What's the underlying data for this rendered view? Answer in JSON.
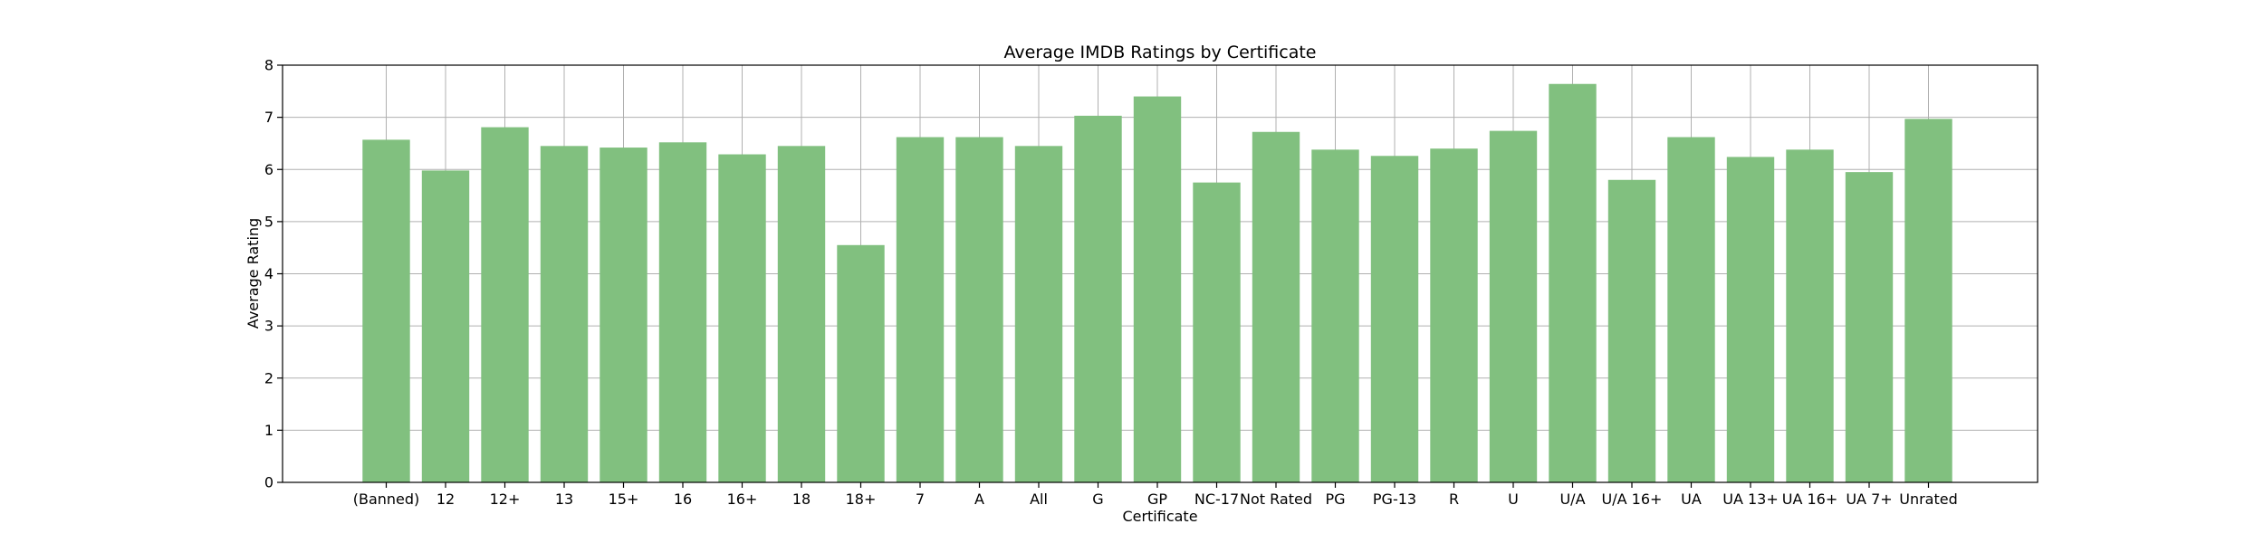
{
  "chart_data": {
    "type": "bar",
    "title": "Average IMDB Ratings by Certificate",
    "xlabel": "Certificate",
    "ylabel": "Average Rating",
    "ylim": [
      0,
      8
    ],
    "yticks": [
      "0",
      "1",
      "2",
      "3",
      "4",
      "5",
      "6",
      "7",
      "8"
    ],
    "grid": true,
    "bar_color": "#81c07f",
    "categories": [
      "(Banned)",
      "12",
      "12+",
      "13",
      "15+",
      "16",
      "16+",
      "18",
      "18+",
      "7",
      "A",
      "All",
      "G",
      "GP",
      "NC-17",
      "Not Rated",
      "PG",
      "PG-13",
      "R",
      "U",
      "U/A",
      "U/A 16+",
      "UA",
      "UA 13+",
      "UA 16+",
      "UA 7+",
      "Unrated"
    ],
    "values": [
      6.57,
      5.98,
      6.81,
      6.45,
      6.42,
      6.52,
      6.29,
      6.45,
      4.55,
      6.62,
      6.62,
      6.45,
      7.03,
      7.4,
      5.75,
      6.72,
      6.38,
      6.26,
      6.4,
      6.74,
      7.64,
      5.8,
      6.62,
      6.24,
      6.38,
      5.95,
      6.97
    ]
  }
}
